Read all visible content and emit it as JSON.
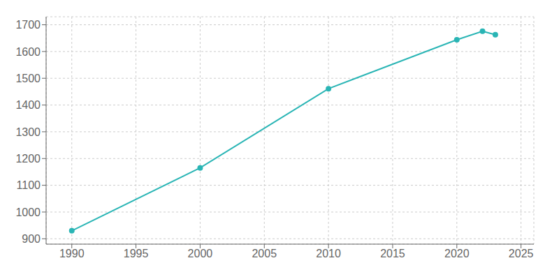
{
  "chart_data": {
    "type": "line",
    "x": [
      1990,
      2000,
      2010,
      2020,
      2022,
      2023
    ],
    "values": [
      930,
      1165,
      1461,
      1644,
      1676,
      1663
    ],
    "color": "#2ab5b5",
    "marker": "circle",
    "xlim": [
      1988,
      2026
    ],
    "ylim": [
      880,
      1730
    ],
    "xticks": [
      1990,
      1995,
      2000,
      2005,
      2010,
      2015,
      2020,
      2025
    ],
    "yticks": [
      900,
      1000,
      1100,
      1200,
      1300,
      1400,
      1500,
      1600,
      1700
    ],
    "grid": true
  }
}
